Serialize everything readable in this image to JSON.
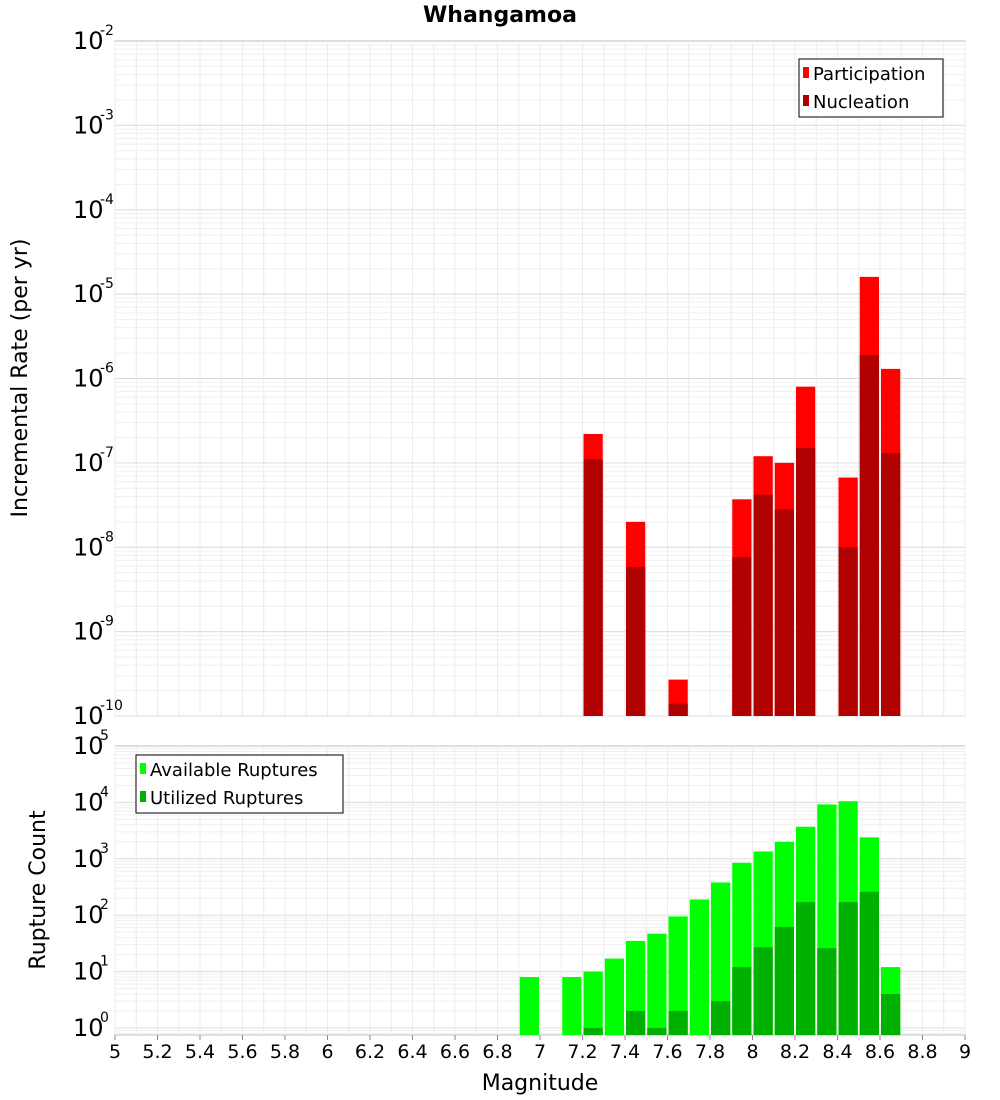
{
  "chart_data": [
    {
      "panel": "top",
      "type": "bar",
      "title": "Whangamoa",
      "xlabel": "Magnitude",
      "ylabel": "Incremental Rate (per yr)",
      "yscale": "log",
      "ylim": [
        1e-10,
        0.01
      ],
      "xlim": [
        5,
        9
      ],
      "y_ticks": [
        {
          "base": "10",
          "exp": "-10"
        },
        {
          "base": "10",
          "exp": "-9"
        },
        {
          "base": "10",
          "exp": "-8"
        },
        {
          "base": "10",
          "exp": "-7"
        },
        {
          "base": "10",
          "exp": "-6"
        },
        {
          "base": "10",
          "exp": "-5"
        },
        {
          "base": "10",
          "exp": "-4"
        },
        {
          "base": "10",
          "exp": "-3"
        },
        {
          "base": "10",
          "exp": "-2"
        }
      ],
      "legend_position": "top-right",
      "grid": true,
      "x": [
        7.25,
        7.45,
        7.65,
        7.95,
        8.05,
        8.15,
        8.25,
        8.45,
        8.55,
        8.65
      ],
      "series": [
        {
          "name": "Participation",
          "color": "#ff0000",
          "values": [
            2.2e-07,
            2e-08,
            2.7e-10,
            3.7e-08,
            1.2e-07,
            1e-07,
            8e-07,
            6.7e-08,
            1.6e-05,
            1.3e-06
          ]
        },
        {
          "name": "Nucleation",
          "color": "#b00000",
          "values": [
            1.1e-07,
            5.8e-09,
            1.4e-10,
            7.6e-09,
            4.2e-08,
            2.8e-08,
            1.5e-07,
            1e-08,
            1.9e-06,
            1.3e-07
          ]
        }
      ]
    },
    {
      "panel": "bottom",
      "type": "bar",
      "xlabel": "Magnitude",
      "ylabel": "Rupture Count",
      "yscale": "log",
      "ylim": [
        0.75,
        100000
      ],
      "xlim": [
        5,
        9
      ],
      "y_ticks": [
        {
          "base": "10",
          "exp": "0"
        },
        {
          "base": "10",
          "exp": "1"
        },
        {
          "base": "10",
          "exp": "2"
        },
        {
          "base": "10",
          "exp": "3"
        },
        {
          "base": "10",
          "exp": "4"
        },
        {
          "base": "10",
          "exp": "5"
        }
      ],
      "x_ticks": [
        "5",
        "5.2",
        "5.4",
        "5.6",
        "5.8",
        "6",
        "6.2",
        "6.4",
        "6.6",
        "6.8",
        "7",
        "7.2",
        "7.4",
        "7.6",
        "7.8",
        "8",
        "8.2",
        "8.4",
        "8.6",
        "8.8",
        "9"
      ],
      "legend_position": "top-left",
      "grid": true,
      "x": [
        6.95,
        7.15,
        7.25,
        7.35,
        7.45,
        7.55,
        7.65,
        7.75,
        7.85,
        7.95,
        8.05,
        8.15,
        8.25,
        8.35,
        8.45,
        8.55,
        8.65
      ],
      "series": [
        {
          "name": "Available Ruptures",
          "color": "#00ff00",
          "values": [
            8,
            8,
            10,
            17,
            35,
            47,
            95,
            190,
            380,
            850,
            1350,
            2000,
            3700,
            9200,
            10500,
            2400,
            12
          ]
        },
        {
          "name": "Utilized Ruptures",
          "color": "#00b000",
          "values": [
            0,
            0,
            1,
            0,
            2,
            1,
            2,
            0,
            3,
            12,
            27,
            62,
            170,
            26,
            170,
            260,
            4
          ]
        }
      ]
    }
  ]
}
